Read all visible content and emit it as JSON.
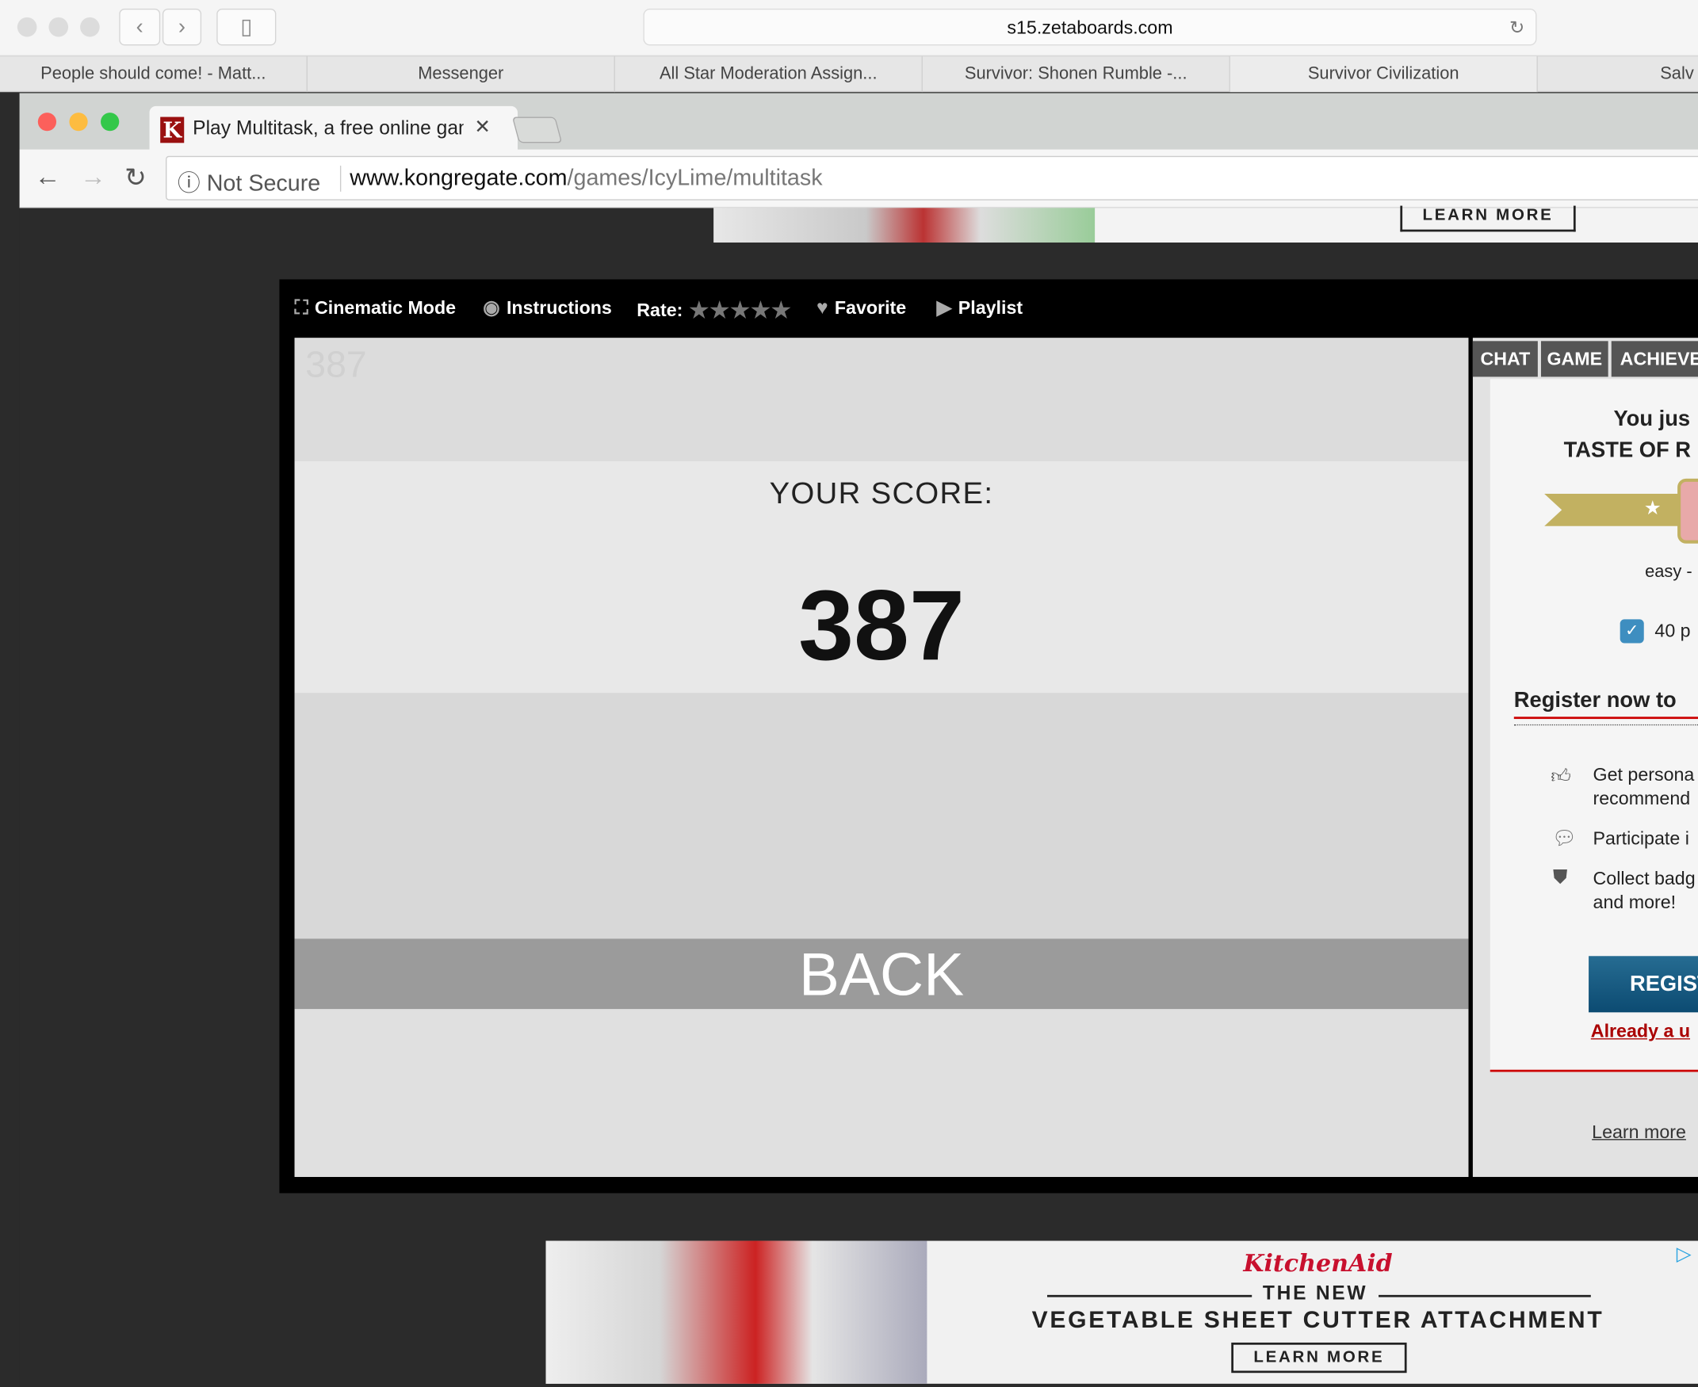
{
  "safari": {
    "address": "s15.zetaboards.com",
    "tabs": [
      "People should come! - Matt...",
      "Messenger",
      "All Star Moderation Assign...",
      "Survivor: Shonen Rumble -...",
      "Survivor Civilization",
      "Salv"
    ]
  },
  "chrome": {
    "tab_title": "Play Multitask, a free online game",
    "not_secure": "Not Secure",
    "url_host": "www.kongregate.com",
    "url_path": "/games/IcyLime/multitask",
    "favicon": "K"
  },
  "ad_top": {
    "cta": "LEARN MORE"
  },
  "game_toolbar": {
    "cinematic": "Cinematic Mode",
    "instructions": "Instructions",
    "rate": "Rate:",
    "stars": "★★★★★",
    "rating": 0,
    "favorite": "Favorite",
    "playlist": "Playlist"
  },
  "game": {
    "ghost_score": "387",
    "score_label": "YOUR SCORE:",
    "score": "387",
    "back": "BACK"
  },
  "side": {
    "tabs": [
      "CHAT",
      "GAME",
      "ACHIEVE"
    ],
    "achievement_line1": "You jus",
    "achievement_line2": "TASTE OF R",
    "difficulty": "easy -",
    "points": "40 p",
    "register_title": "Register now to",
    "benefits": [
      "Get persona",
      "recommend",
      "Participate i",
      "Collect badg",
      "and more!"
    ],
    "register_button": "REGIST",
    "already": "Already a u",
    "learn_more": "Learn more"
  },
  "ad_bottom": {
    "brand": "KitchenAid",
    "tagline": "THE NEW",
    "headline": "VEGETABLE SHEET CUTTER ATTACHMENT",
    "cta": "LEARN MORE",
    "brand_color": "#c8102e"
  }
}
